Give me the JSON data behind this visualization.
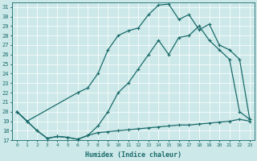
{
  "xlabel": "Humidex (Indice chaleur)",
  "xlim": [
    -0.5,
    23.5
  ],
  "ylim": [
    17,
    31.5
  ],
  "yticks": [
    17,
    18,
    19,
    20,
    21,
    22,
    23,
    24,
    25,
    26,
    27,
    28,
    29,
    30,
    31
  ],
  "xticks": [
    0,
    1,
    2,
    3,
    4,
    5,
    6,
    7,
    8,
    9,
    10,
    11,
    12,
    13,
    14,
    15,
    16,
    17,
    18,
    19,
    20,
    21,
    22,
    23
  ],
  "bg_color": "#cde8e8",
  "grid_color": "#b0d0d0",
  "line_color": "#1a6b6b",
  "line_min": {
    "x": [
      0,
      1,
      2,
      3,
      4,
      5,
      6,
      7,
      8,
      9,
      10,
      11,
      12,
      13,
      14,
      15,
      16,
      17,
      18,
      19,
      20,
      21,
      22,
      23
    ],
    "y": [
      20.0,
      19.0,
      18.0,
      17.2,
      17.4,
      17.3,
      17.1,
      17.5,
      17.8,
      17.9,
      18.0,
      18.1,
      18.2,
      18.3,
      18.4,
      18.5,
      18.6,
      18.6,
      18.7,
      18.8,
      18.9,
      19.0,
      19.2,
      19.0
    ]
  },
  "line_max": {
    "x": [
      0,
      1,
      6,
      7,
      8,
      9,
      10,
      11,
      12,
      13,
      14,
      15,
      16,
      17,
      18,
      19,
      20,
      21,
      22,
      23
    ],
    "y": [
      20.0,
      19.0,
      22.0,
      22.5,
      24.0,
      26.5,
      28.0,
      28.5,
      28.8,
      30.2,
      31.2,
      31.3,
      29.7,
      30.2,
      28.6,
      29.2,
      27.0,
      26.5,
      25.5,
      19.2
    ]
  },
  "line_mid": {
    "x": [
      0,
      1,
      2,
      3,
      4,
      5,
      6,
      7,
      8,
      9,
      10,
      11,
      12,
      13,
      14,
      15,
      16,
      17,
      18,
      19,
      20,
      21,
      22,
      23
    ],
    "y": [
      20.0,
      19.0,
      18.0,
      17.2,
      17.4,
      17.3,
      17.1,
      17.5,
      18.5,
      20.0,
      22.0,
      23.0,
      24.5,
      26.0,
      27.5,
      26.0,
      27.8,
      28.0,
      29.0,
      27.5,
      26.5,
      25.5,
      20.0,
      19.2
    ]
  }
}
